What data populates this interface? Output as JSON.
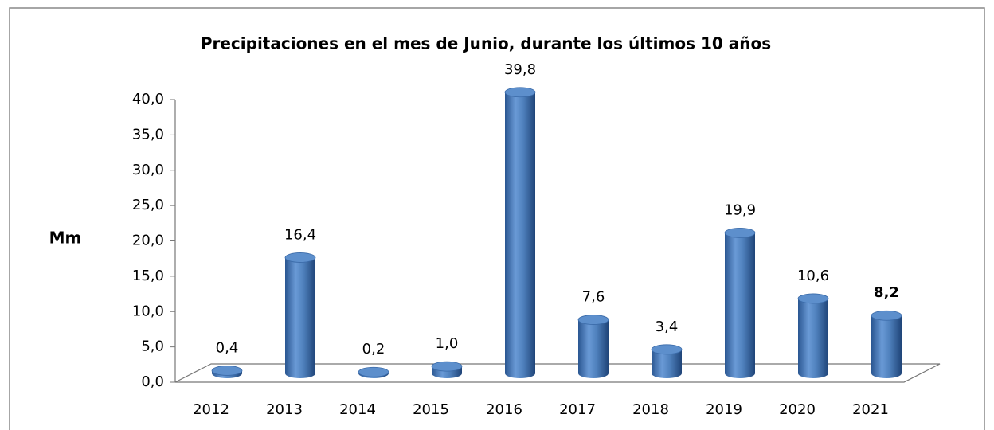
{
  "chart_data": {
    "type": "bar3d",
    "title": "Precipitaciones en el mes de Junio, durante los últimos 10 años",
    "y_label": "Mm",
    "categories": [
      "2012",
      "2013",
      "2014",
      "2015",
      "2016",
      "2017",
      "2018",
      "2019",
      "2020",
      "2021"
    ],
    "values": [
      0.4,
      16.4,
      0.2,
      1.0,
      39.8,
      7.6,
      3.4,
      19.9,
      10.6,
      8.2
    ],
    "value_labels": [
      "0,4",
      "16,4",
      "0,2",
      "1,0",
      "39,8",
      "7,6",
      "3,4",
      "19,9",
      "10,6",
      "8,2"
    ],
    "bold_value_labels": [
      9
    ],
    "color": "#4f81bd",
    "ylim": [
      0,
      40
    ],
    "yticks": [
      {
        "value": 0,
        "label": "0,0"
      },
      {
        "value": 5,
        "label": "5,0"
      },
      {
        "value": 10,
        "label": "10,0"
      },
      {
        "value": 15,
        "label": "15,0"
      },
      {
        "value": 20,
        "label": "20,0"
      },
      {
        "value": 25,
        "label": "25,0"
      },
      {
        "value": 30,
        "label": "30,0"
      },
      {
        "value": 35,
        "label": "35,0"
      },
      {
        "value": 40,
        "label": "40,0"
      }
    ],
    "grid": false
  }
}
